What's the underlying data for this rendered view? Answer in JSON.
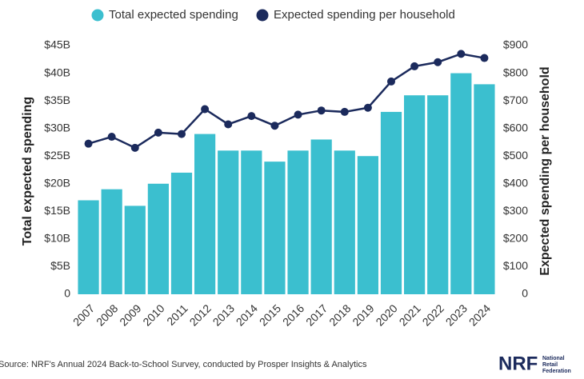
{
  "chart_data": {
    "type": "bar-line",
    "categories": [
      "2007",
      "2008",
      "2009",
      "2010",
      "2011",
      "2012",
      "2013",
      "2014",
      "2015",
      "2016",
      "2017",
      "2018",
      "2019",
      "2020",
      "2021",
      "2022",
      "2023",
      "2024"
    ],
    "series": [
      {
        "name": "Total expected spending",
        "color": "#3bbfcf",
        "type": "bar",
        "values": [
          17,
          19,
          16,
          20,
          22,
          29,
          26,
          26,
          24,
          26,
          28,
          26,
          25,
          33,
          36,
          36,
          40,
          38
        ]
      },
      {
        "name": "Expected spending per household",
        "color": "#1b2a5c",
        "type": "line",
        "axis": "y2",
        "values": [
          545,
          570,
          530,
          585,
          580,
          670,
          615,
          645,
          610,
          650,
          665,
          660,
          675,
          770,
          825,
          840,
          870,
          855
        ]
      }
    ],
    "ylabel": "Total expected spending",
    "y2label": "Expected spending per household",
    "ylim": [
      0,
      45
    ],
    "yticks": [
      0,
      {
        "value": 5,
        "label": "$5B"
      },
      {
        "value": 10,
        "label": "$10B"
      },
      {
        "value": 15,
        "label": "$15B"
      },
      {
        "value": 20,
        "label": "$20B"
      },
      {
        "value": 25,
        "label": "$25B"
      },
      {
        "value": 30,
        "label": "$30B"
      },
      {
        "value": 35,
        "label": "$35B"
      },
      {
        "value": 40,
        "label": "$40B"
      },
      {
        "value": 45,
        "label": "$45B"
      }
    ],
    "y2lim": [
      0,
      900
    ],
    "y2ticks": [
      0,
      {
        "value": 100,
        "label": "$100"
      },
      {
        "value": 200,
        "label": "$200"
      },
      {
        "value": 300,
        "label": "$300"
      },
      {
        "value": 400,
        "label": "$400"
      },
      {
        "value": 500,
        "label": "$500"
      },
      {
        "value": 600,
        "label": "$600"
      },
      {
        "value": 700,
        "label": "$700"
      },
      {
        "value": 800,
        "label": "$800"
      },
      {
        "value": 900,
        "label": "$900"
      }
    ],
    "legend": "top"
  },
  "footer": {
    "source": "Source: NRF's Annual 2024 Back-to-School Survey, conducted by Prosper Insights & Analytics",
    "logo": "NRF",
    "logo_text": [
      "National",
      "Retail",
      "Federation"
    ]
  }
}
